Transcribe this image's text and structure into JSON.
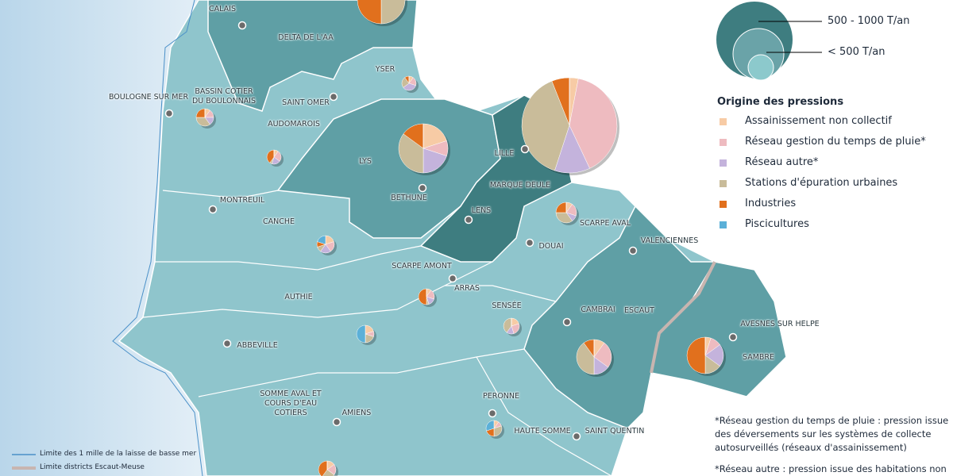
{
  "legend": {
    "sizes": [
      "500 - 1000  T/an",
      "< 500 T/an"
    ],
    "title": "Origine des pressions",
    "items": [
      {
        "label": "Assainissement non collectif",
        "color": "#f7cba5"
      },
      {
        "label": "Réseau gestion du temps de pluie*",
        "color": "#eebbc0"
      },
      {
        "label": "Réseau autre*",
        "color": "#c4b3dc"
      },
      {
        "label": "Stations d'épuration urbaines",
        "color": "#c9bc9a"
      },
      {
        "label": "Industries",
        "color": "#e1701d"
      },
      {
        "label": "Piscicultures",
        "color": "#5bb0d8"
      }
    ]
  },
  "regions": [
    {
      "label": "DELTA DE L'AA",
      "values": [
        0,
        10,
        10,
        30,
        50,
        0
      ]
    },
    {
      "label": "YSER",
      "values": [
        10,
        20,
        35,
        25,
        10,
        0
      ]
    },
    {
      "label": "BASSIN COTIER DU BOULONNAIS",
      "values": [
        10,
        15,
        15,
        35,
        25,
        0
      ]
    },
    {
      "label": "AUDOMAROIS",
      "values": [
        10,
        25,
        20,
        5,
        40,
        0
      ]
    },
    {
      "label": "LYS",
      "values": [
        20,
        10,
        20,
        35,
        15,
        0
      ]
    },
    {
      "label": "MARQUE DEULE",
      "values": [
        3,
        40,
        12,
        39,
        6,
        0
      ]
    },
    {
      "label": "SCARPE AVAL",
      "values": [
        10,
        20,
        10,
        35,
        25,
        0
      ]
    },
    {
      "label": "CANCHE",
      "values": [
        20,
        20,
        20,
        10,
        10,
        20
      ]
    },
    {
      "label": "SCARPE AMONT",
      "values": [
        10,
        20,
        15,
        5,
        50,
        0
      ]
    },
    {
      "label": "AUTHIE",
      "values": [
        20,
        10,
        0,
        20,
        0,
        50
      ]
    },
    {
      "label": "SENSÉE",
      "values": [
        20,
        25,
        15,
        40,
        0,
        0
      ]
    },
    {
      "label": "ESCAUT",
      "values": [
        10,
        25,
        15,
        40,
        10,
        0
      ]
    },
    {
      "label": "SAMBRE",
      "values": [
        5,
        10,
        20,
        15,
        50,
        0
      ]
    },
    {
      "label": "SOMME AVAL ET COURS D'EAU COTIERS",
      "values": [
        10,
        10,
        0,
        30,
        20,
        30
      ]
    },
    {
      "label": "HAUTE SOMME",
      "values": [
        15,
        20,
        0,
        25,
        40,
        0
      ]
    }
  ],
  "cities": [
    "CALAIS",
    "BOULOGNE SUR MER",
    "SAINT OMER",
    "LILLE",
    "BETHUNE",
    "LENS",
    "MONTREUIL",
    "DOUAI",
    "VALENCIENNES",
    "ARRAS",
    "CAMBRAI",
    "AVESNES SUR HELPE",
    "ABBEVILLE",
    "AMIENS",
    "PERONNE",
    "SAINT QUENTIN"
  ],
  "notes": [
    "*Réseau gestion du temps de pluie : pression issue des déversements sur les systèmes de collecte autosurveillés (réseaux d'assainissement)",
    "*Réseau autre :  pression issue des habitations non"
  ],
  "map_legend": [
    "Limite des 1 mille de la laisse de basse mer",
    "Limite districts Escaut-Meuse"
  ]
}
